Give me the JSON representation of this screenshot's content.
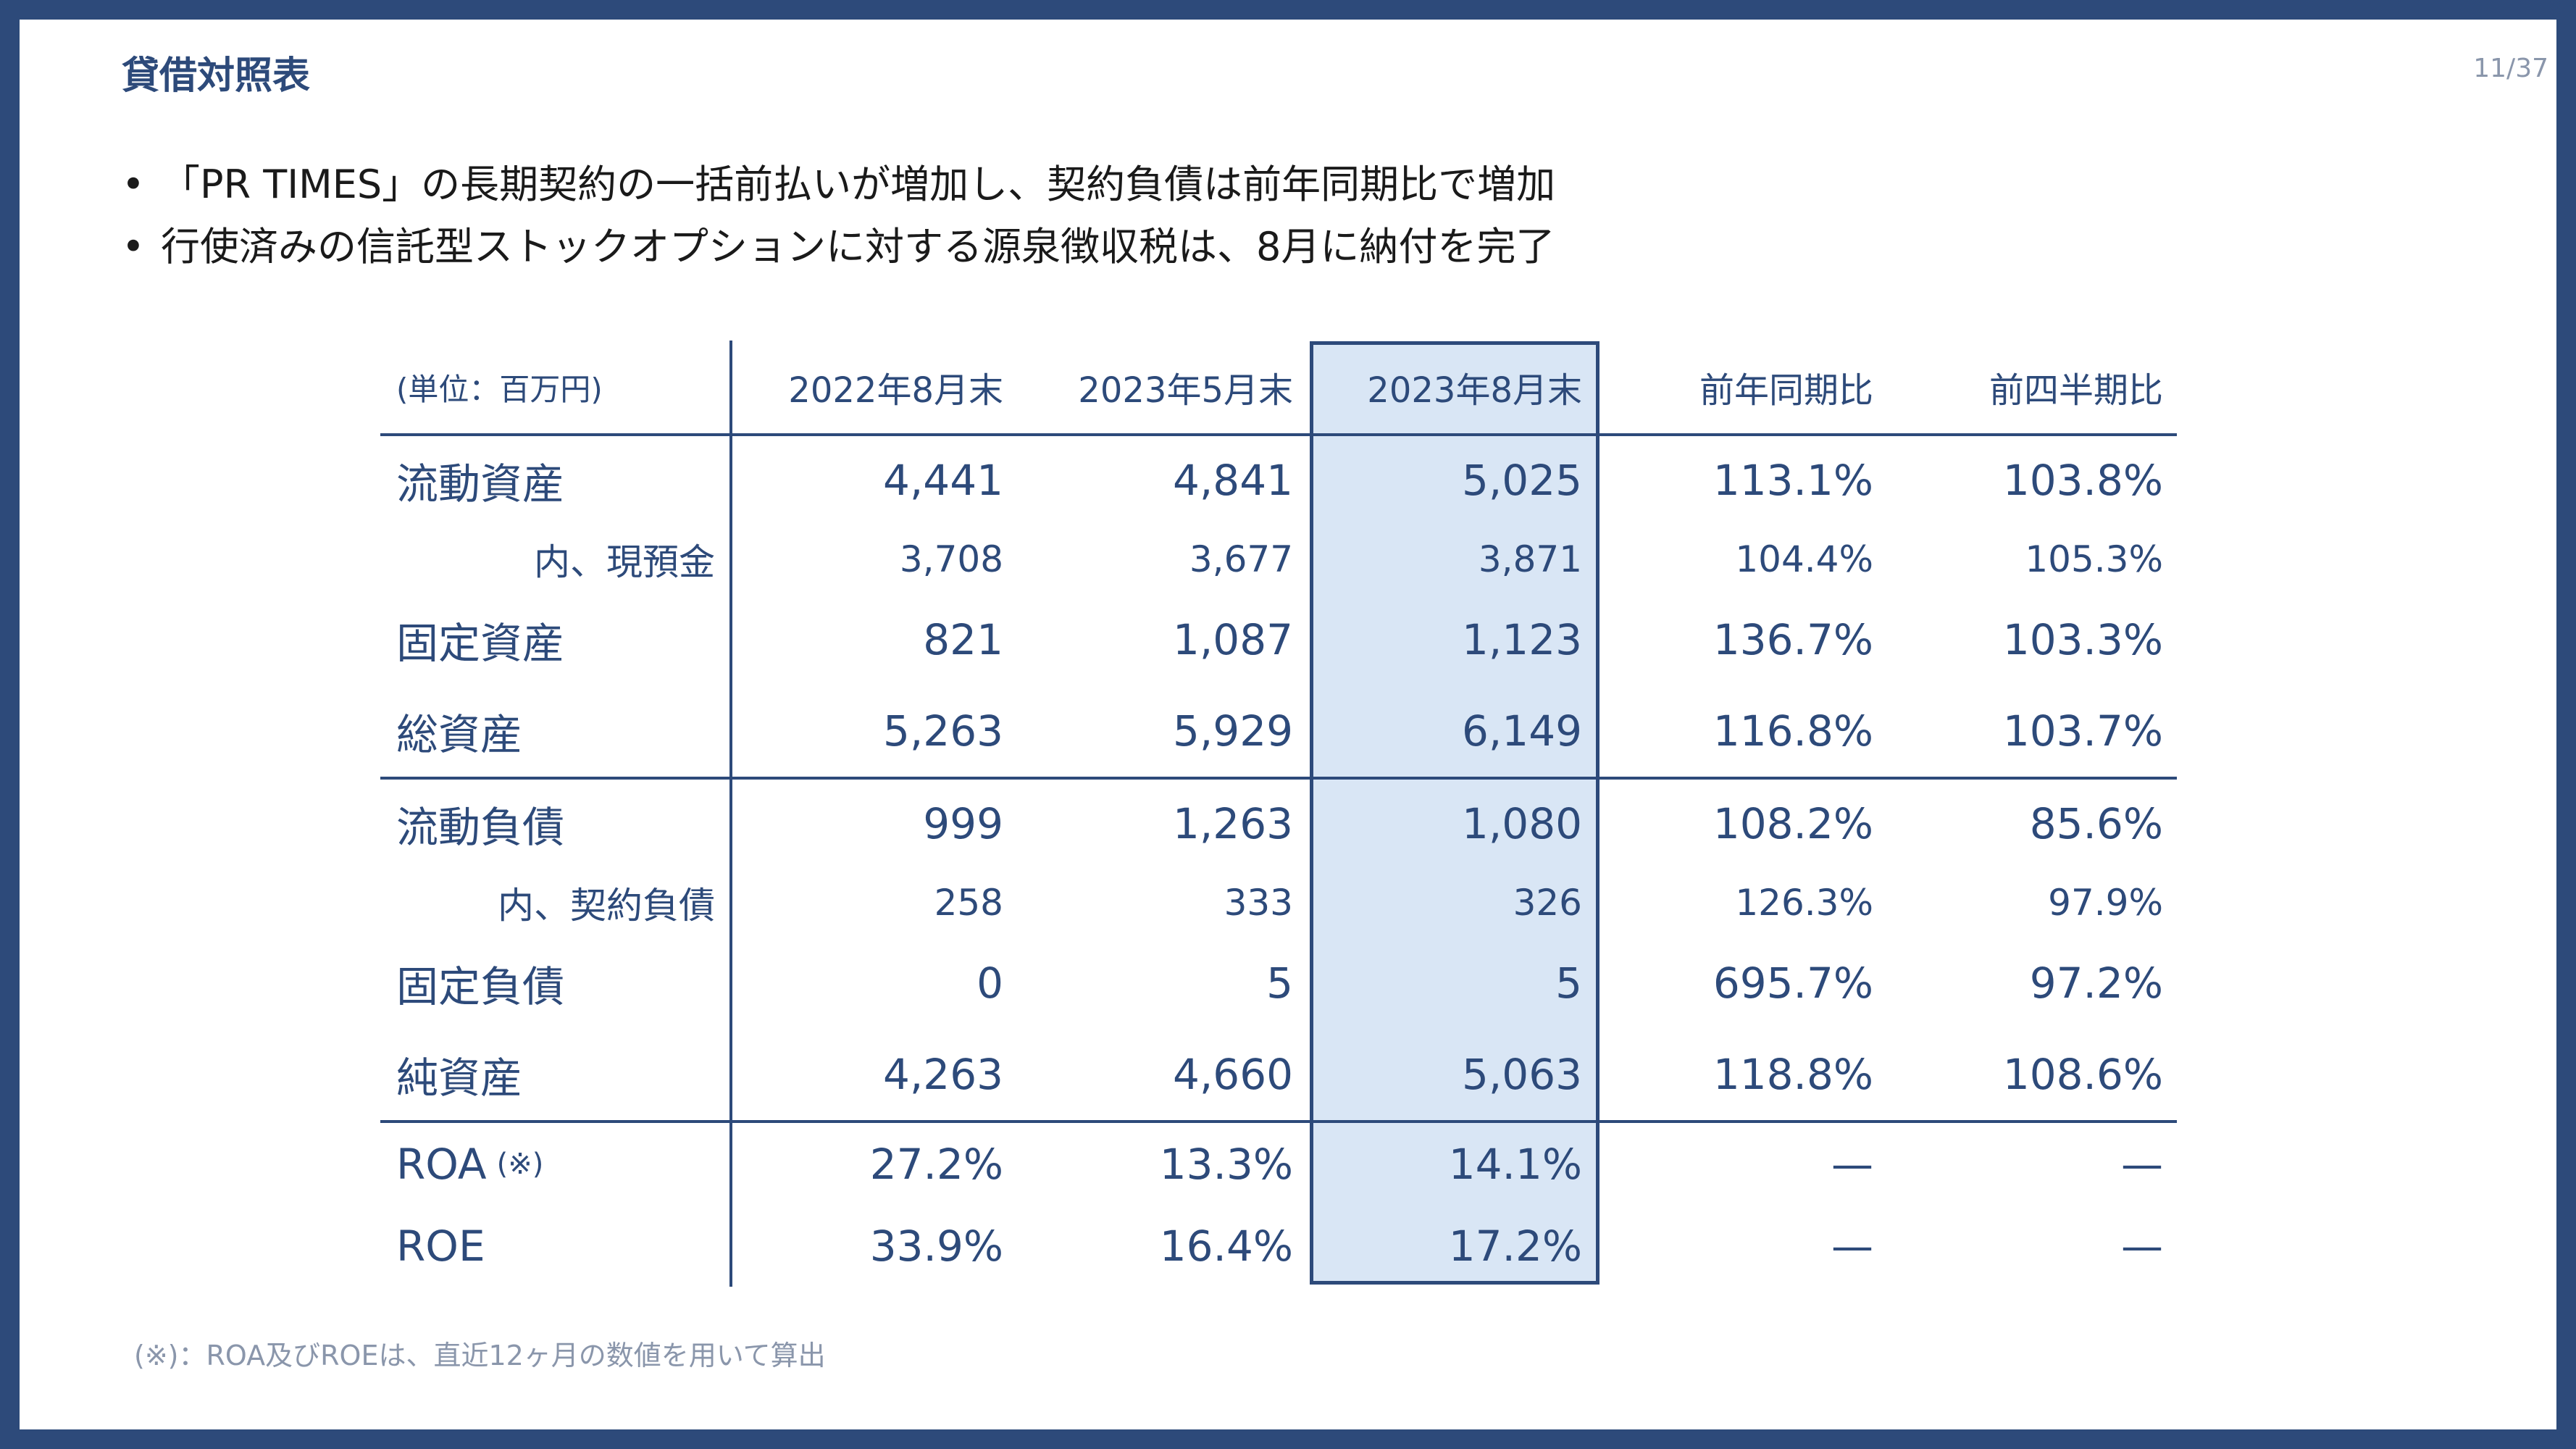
{
  "slide": {
    "title": "貸借対照表",
    "page_number": "11/37",
    "bullet_glyph": "•",
    "bullets": [
      "「PR TIMES」の長期契約の一括前払いが増加し、契約負債は前年同期比で増加",
      "行使済みの信託型ストックオプションに対する源泉徴収税は、8月に納付を完了"
    ],
    "footnote": "(※)：ROA及びROEは、直近12ヶ月の数値を用いて算出"
  },
  "table": {
    "unit_label": "(単位：百万円)",
    "headers": [
      "2022年8月末",
      "2023年5月末",
      "2023年8月末",
      "前年同期比",
      "前四半期比"
    ],
    "highlight_color": "#d9e6f5",
    "line_color": "#2d4a7a",
    "rows": [
      {
        "label": "流動資産",
        "values": [
          "4,441",
          "4,841",
          "5,025",
          "113.1%",
          "103.8%"
        ]
      },
      {
        "label": "内、現預金",
        "values": [
          "3,708",
          "3,677",
          "3,871",
          "104.4%",
          "105.3%"
        ]
      },
      {
        "label": "固定資産",
        "values": [
          "821",
          "1,087",
          "1,123",
          "136.7%",
          "103.3%"
        ]
      },
      {
        "label": "総資産",
        "values": [
          "5,263",
          "5,929",
          "6,149",
          "116.8%",
          "103.7%"
        ]
      },
      {
        "label": "流動負債",
        "values": [
          "999",
          "1,263",
          "1,080",
          "108.2%",
          "85.6%"
        ]
      },
      {
        "label": "内、契約負債",
        "values": [
          "258",
          "333",
          "326",
          "126.3%",
          "97.9%"
        ]
      },
      {
        "label": "固定負債",
        "values": [
          "0",
          "5",
          "5",
          "695.7%",
          "97.2%"
        ]
      },
      {
        "label": "純資産",
        "values": [
          "4,263",
          "4,660",
          "5,063",
          "118.8%",
          "108.6%"
        ]
      },
      {
        "label": "ROA",
        "label_note": "(※)",
        "values": [
          "27.2%",
          "13.3%",
          "14.1%",
          "—",
          "—"
        ]
      },
      {
        "label": "ROE",
        "values": [
          "33.9%",
          "16.4%",
          "17.2%",
          "—",
          "—"
        ]
      }
    ]
  }
}
